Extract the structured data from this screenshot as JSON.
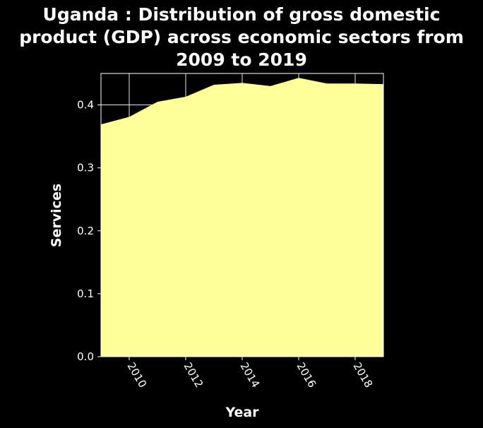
{
  "chart_data": {
    "type": "area",
    "title_lines": [
      "Uganda : Distribution of gross domestic",
      "product (GDP) across economic sectors from",
      "2009 to 2019"
    ],
    "xlabel": "Year",
    "ylabel": "Services",
    "x": [
      2009,
      2010,
      2011,
      2012,
      2013,
      2014,
      2015,
      2016,
      2017,
      2018,
      2019
    ],
    "series": [
      {
        "values": [
          0.369,
          0.381,
          0.405,
          0.413,
          0.432,
          0.435,
          0.43,
          0.443,
          0.434,
          0.434,
          0.433
        ]
      }
    ],
    "xlim": [
      2009,
      2019
    ],
    "ylim": [
      0,
      0.45
    ],
    "xticks": [
      2010,
      2012,
      2014,
      2016,
      2018
    ],
    "yticks": [
      0.0,
      0.1,
      0.2,
      0.3,
      0.4
    ],
    "ytick_labels": [
      "0.0",
      "0.1",
      "0.2",
      "0.3",
      "0.4"
    ],
    "grid": true,
    "colors": {
      "background": "#000000",
      "plot_background": "#000000",
      "fill": "#ffff99",
      "grid": "#ffffff",
      "text": "#ffffff"
    }
  }
}
